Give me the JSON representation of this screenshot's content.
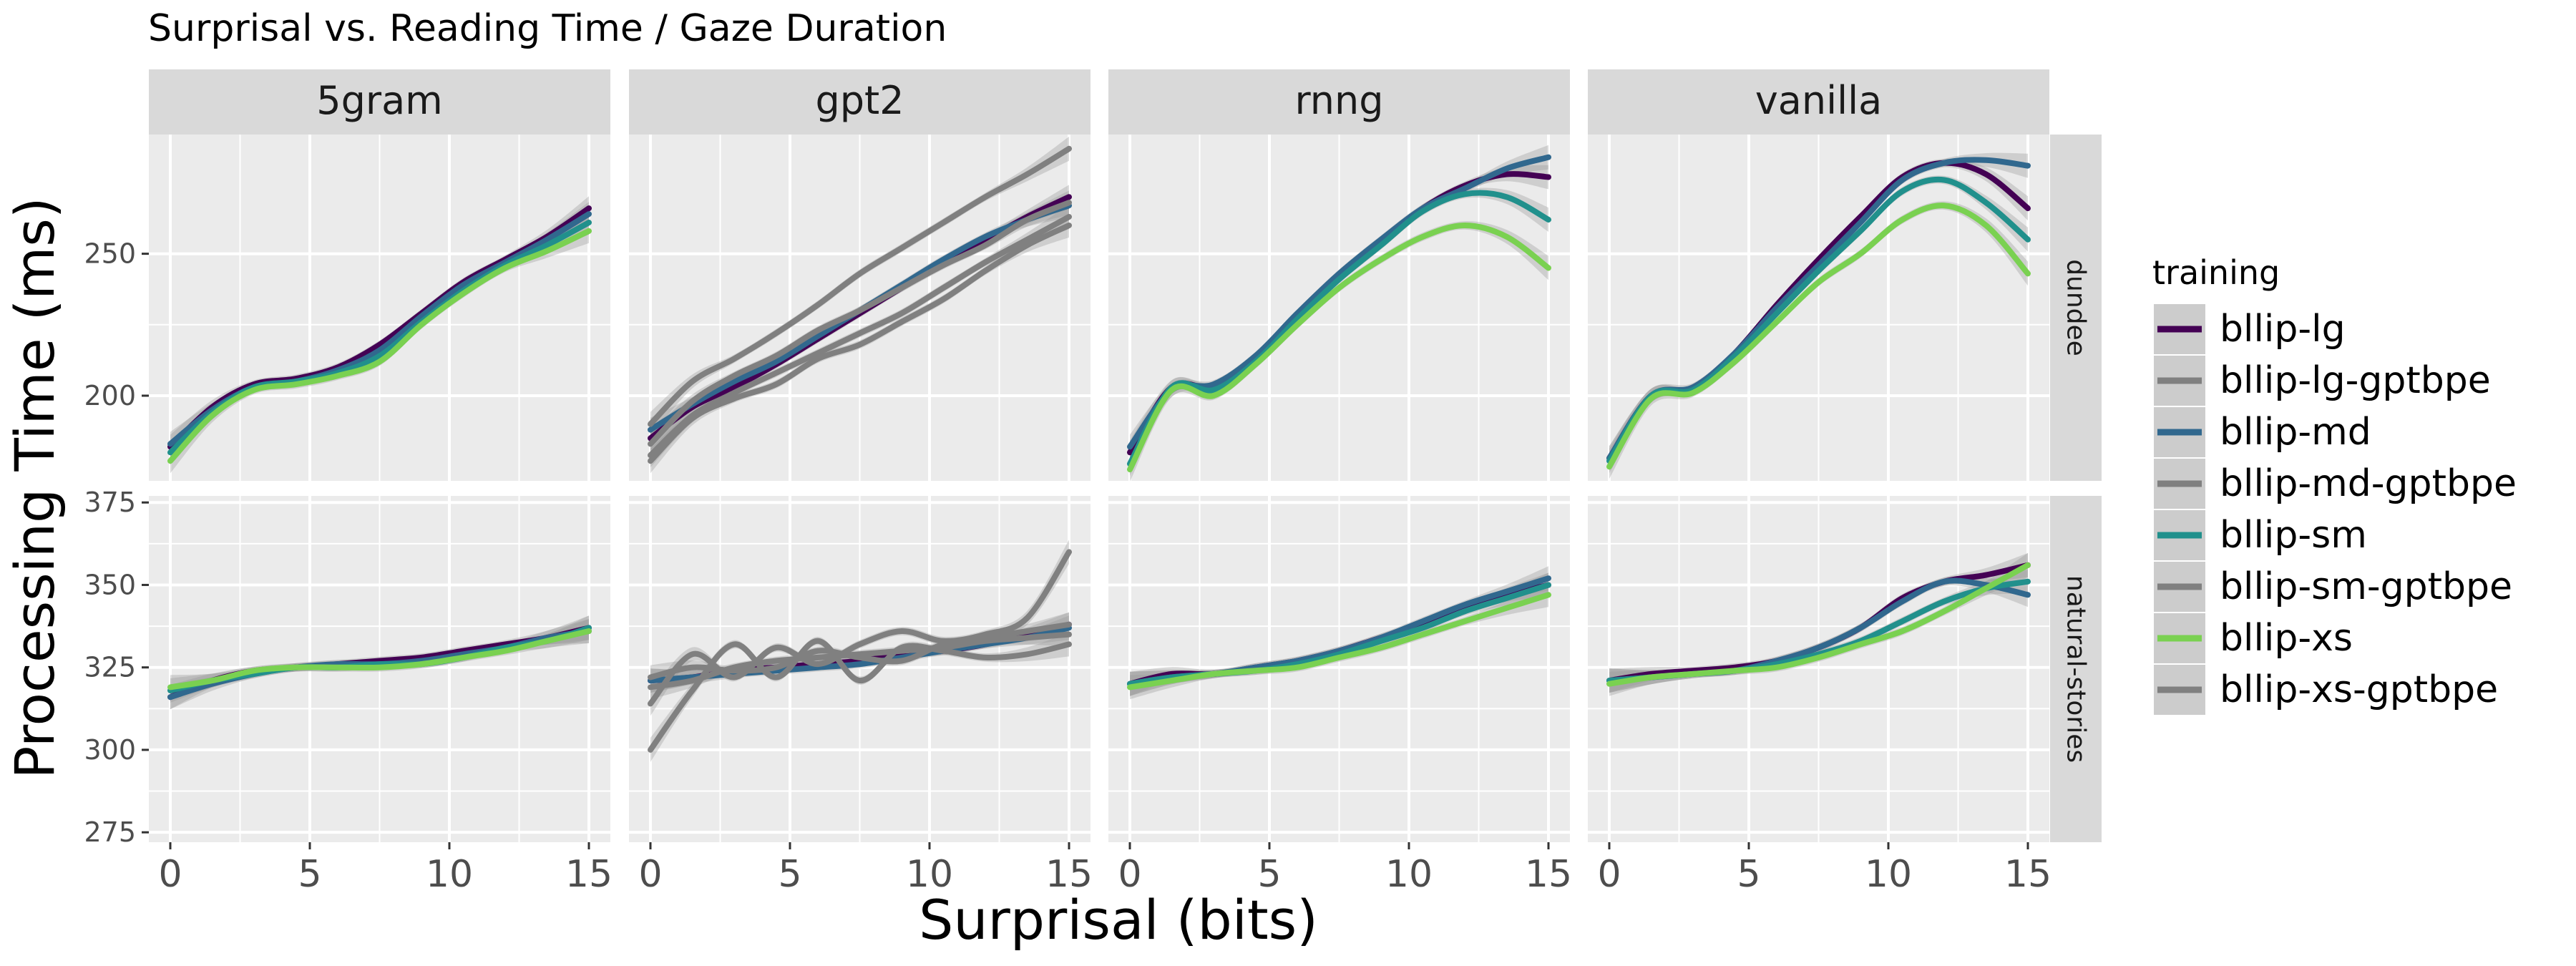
{
  "chart_data": {
    "type": "line",
    "title": "Surprisal vs. Reading Time / Gaze Duration",
    "xlabel": "Surprisal (bits)",
    "ylabel": "Processing Time (ms)",
    "xlim": [
      0,
      15
    ],
    "x_ticks": [
      0,
      5,
      10,
      15
    ],
    "columns": [
      "5gram",
      "gpt2",
      "rnng",
      "vanilla"
    ],
    "rows": [
      {
        "name": "dundee",
        "ylim": [
          170,
          292
        ],
        "ticks": [
          200,
          250
        ]
      },
      {
        "name": "natural-stories",
        "ylim": [
          272,
          377
        ],
        "ticks": [
          275,
          300,
          325,
          350,
          375
        ]
      }
    ],
    "legend": {
      "title": "training",
      "position": "right",
      "entries": [
        {
          "name": "bllip-lg",
          "color": "#440154"
        },
        {
          "name": "bllip-lg-gptbpe",
          "color": "#808080"
        },
        {
          "name": "bllip-md",
          "color": "#31688E"
        },
        {
          "name": "bllip-md-gptbpe",
          "color": "#808080"
        },
        {
          "name": "bllip-sm",
          "color": "#21908C"
        },
        {
          "name": "bllip-sm-gptbpe",
          "color": "#808080"
        },
        {
          "name": "bllip-xs",
          "color": "#7AD151"
        },
        {
          "name": "bllip-xs-gptbpe",
          "color": "#808080"
        }
      ]
    },
    "colors": {
      "panel_bg": "#EBEBEB",
      "strip_bg": "#D9D9D9",
      "grid": "#FFFFFF",
      "ribbon": "#999999"
    },
    "x": [
      0,
      1.5,
      3,
      4.5,
      6,
      7.5,
      9,
      10.5,
      12,
      13.5,
      15
    ],
    "panels": [
      {
        "row": "dundee",
        "col": "5gram",
        "series": [
          {
            "name": "bllip-lg",
            "y": [
              182,
              196,
              204,
              206,
              210,
              218,
              229,
              240,
              248,
              256,
              266
            ]
          },
          {
            "name": "bllip-md",
            "y": [
              183,
              195,
              203,
              205,
              209,
              216,
              228,
              239,
              247,
              255,
              264
            ]
          },
          {
            "name": "bllip-sm",
            "y": [
              180,
              194,
              203,
              205,
              208,
              214,
              226,
              237,
              246,
              253,
              261
            ]
          },
          {
            "name": "bllip-xs",
            "y": [
              177,
              193,
              202,
              204,
              207,
              212,
              225,
              236,
              245,
              251,
              258
            ]
          }
        ]
      },
      {
        "row": "dundee",
        "col": "gpt2",
        "series": [
          {
            "name": "bllip-lg",
            "y": [
              185,
              196,
              203,
              211,
              220,
              229,
              238,
              247,
              255,
              263,
              270
            ]
          },
          {
            "name": "bllip-md",
            "y": [
              188,
              197,
              205,
              212,
              221,
              230,
              239,
              248,
              256,
              262,
              267
            ]
          },
          {
            "name": "bllip-lg-gptbpe",
            "y": [
              190,
              205,
              213,
              222,
              232,
              243,
              252,
              261,
              270,
              278,
              287
            ]
          },
          {
            "name": "bllip-md-gptbpe",
            "y": [
              183,
              198,
              207,
              214,
              223,
              230,
              238,
              246,
              253,
              262,
              268
            ]
          },
          {
            "name": "bllip-sm-gptbpe",
            "y": [
              179,
              193,
              201,
              208,
              215,
              222,
              229,
              238,
              247,
              255,
              263
            ]
          },
          {
            "name": "bllip-xs-gptbpe",
            "y": [
              177,
              192,
              199,
              204,
              213,
              218,
              226,
              234,
              244,
              253,
              260
            ]
          }
        ]
      },
      {
        "row": "dundee",
        "col": "rnng",
        "series": [
          {
            "name": "bllip-lg",
            "y": [
              180,
              203,
              203,
              213,
              228,
              242,
              254,
              266,
              274,
              278,
              277
            ]
          },
          {
            "name": "bllip-md",
            "y": [
              182,
              202,
              204,
              214,
              229,
              243,
              255,
              266,
              273,
              280,
              284
            ]
          },
          {
            "name": "bllip-sm",
            "y": [
              176,
              203,
              202,
              212,
              227,
              241,
              253,
              265,
              271,
              270,
              262
            ]
          },
          {
            "name": "bllip-xs",
            "y": [
              174,
              202,
              200,
              211,
              225,
              238,
              248,
              256,
              260,
              256,
              245
            ]
          }
        ]
      },
      {
        "row": "dundee",
        "col": "vanilla",
        "series": [
          {
            "name": "bllip-lg",
            "y": [
              178,
              200,
              202,
              215,
              232,
              248,
              263,
              277,
              282,
              278,
              266
            ]
          },
          {
            "name": "bllip-md",
            "y": [
              178,
              200,
              203,
              215,
              231,
              246,
              261,
              276,
              282,
              283,
              281
            ]
          },
          {
            "name": "bllip-sm",
            "y": [
              177,
              200,
              202,
              214,
              229,
              244,
              258,
              272,
              276,
              268,
              255
            ]
          },
          {
            "name": "bllip-xs",
            "y": [
              175,
              199,
              201,
              212,
              226,
              240,
              250,
              262,
              267,
              260,
              243
            ]
          }
        ]
      },
      {
        "row": "natural-stories",
        "col": "5gram",
        "series": [
          {
            "name": "bllip-lg",
            "y": [
              316,
              321,
              324,
              325,
              326,
              327,
              328,
              330,
              332,
              334,
              337
            ]
          },
          {
            "name": "bllip-md",
            "y": [
              316,
              320,
              323,
              325,
              326,
              326,
              327,
              329,
              331,
              334,
              336
            ]
          },
          {
            "name": "bllip-sm",
            "y": [
              318,
              321,
              323,
              325,
              325,
              326,
              326,
              328,
              331,
              333,
              337
            ]
          },
          {
            "name": "bllip-xs",
            "y": [
              319,
              321,
              324,
              325,
              325,
              325,
              326,
              328,
              330,
              333,
              336
            ]
          }
        ]
      },
      {
        "row": "natural-stories",
        "col": "gpt2",
        "series": [
          {
            "name": "bllip-lg",
            "y": [
              321,
              322,
              324,
              325,
              326,
              327,
              329,
              330,
              332,
              335,
              338
            ]
          },
          {
            "name": "bllip-md",
            "y": [
              321,
              322,
              323,
              324,
              325,
              326,
              328,
              330,
              332,
              334,
              337
            ]
          },
          {
            "name": "bllip-lg-gptbpe",
            "y": [
              314,
              329,
              322,
              331,
              326,
              332,
              336,
              333,
              335,
              340,
              360
            ]
          },
          {
            "name": "bllip-md-gptbpe",
            "y": [
              322,
              325,
              324,
              325,
              330,
              328,
              327,
              332,
              334,
              336,
              338
            ]
          },
          {
            "name": "bllip-sm-gptbpe",
            "y": [
              319,
              321,
              325,
              327,
              328,
              329,
              330,
              331,
              333,
              334,
              335
            ]
          },
          {
            "name": "bllip-xs-gptbpe",
            "y": [
              300,
              318,
              332,
              322,
              333,
              321,
              331,
              330,
              328,
              329,
              332
            ]
          }
        ]
      },
      {
        "row": "natural-stories",
        "col": "rnng",
        "series": [
          {
            "name": "bllip-lg",
            "y": [
              320,
              323,
              323,
              325,
              327,
              330,
              334,
              338,
              343,
              347,
              350
            ]
          },
          {
            "name": "bllip-md",
            "y": [
              320,
              322,
              323,
              325,
              327,
              330,
              334,
              339,
              344,
              348,
              352
            ]
          },
          {
            "name": "bllip-sm",
            "y": [
              320,
              322,
              323,
              324,
              326,
              329,
              333,
              337,
              342,
              346,
              350
            ]
          },
          {
            "name": "bllip-xs",
            "y": [
              319,
              321,
              323,
              324,
              325,
              328,
              331,
              335,
              339,
              343,
              347
            ]
          }
        ]
      },
      {
        "row": "natural-stories",
        "col": "vanilla",
        "series": [
          {
            "name": "bllip-lg",
            "y": [
              321,
              323,
              324,
              325,
              327,
              331,
              337,
              346,
              351,
              353,
              356
            ]
          },
          {
            "name": "bllip-md",
            "y": [
              321,
              322,
              323,
              324,
              327,
              331,
              337,
              345,
              351,
              350,
              347
            ]
          },
          {
            "name": "bllip-sm",
            "y": [
              321,
              322,
              323,
              324,
              326,
              329,
              333,
              339,
              345,
              349,
              351
            ]
          },
          {
            "name": "bllip-xs",
            "y": [
              320,
              322,
              323,
              324,
              325,
              328,
              332,
              336,
              342,
              349,
              356
            ]
          }
        ]
      }
    ]
  }
}
